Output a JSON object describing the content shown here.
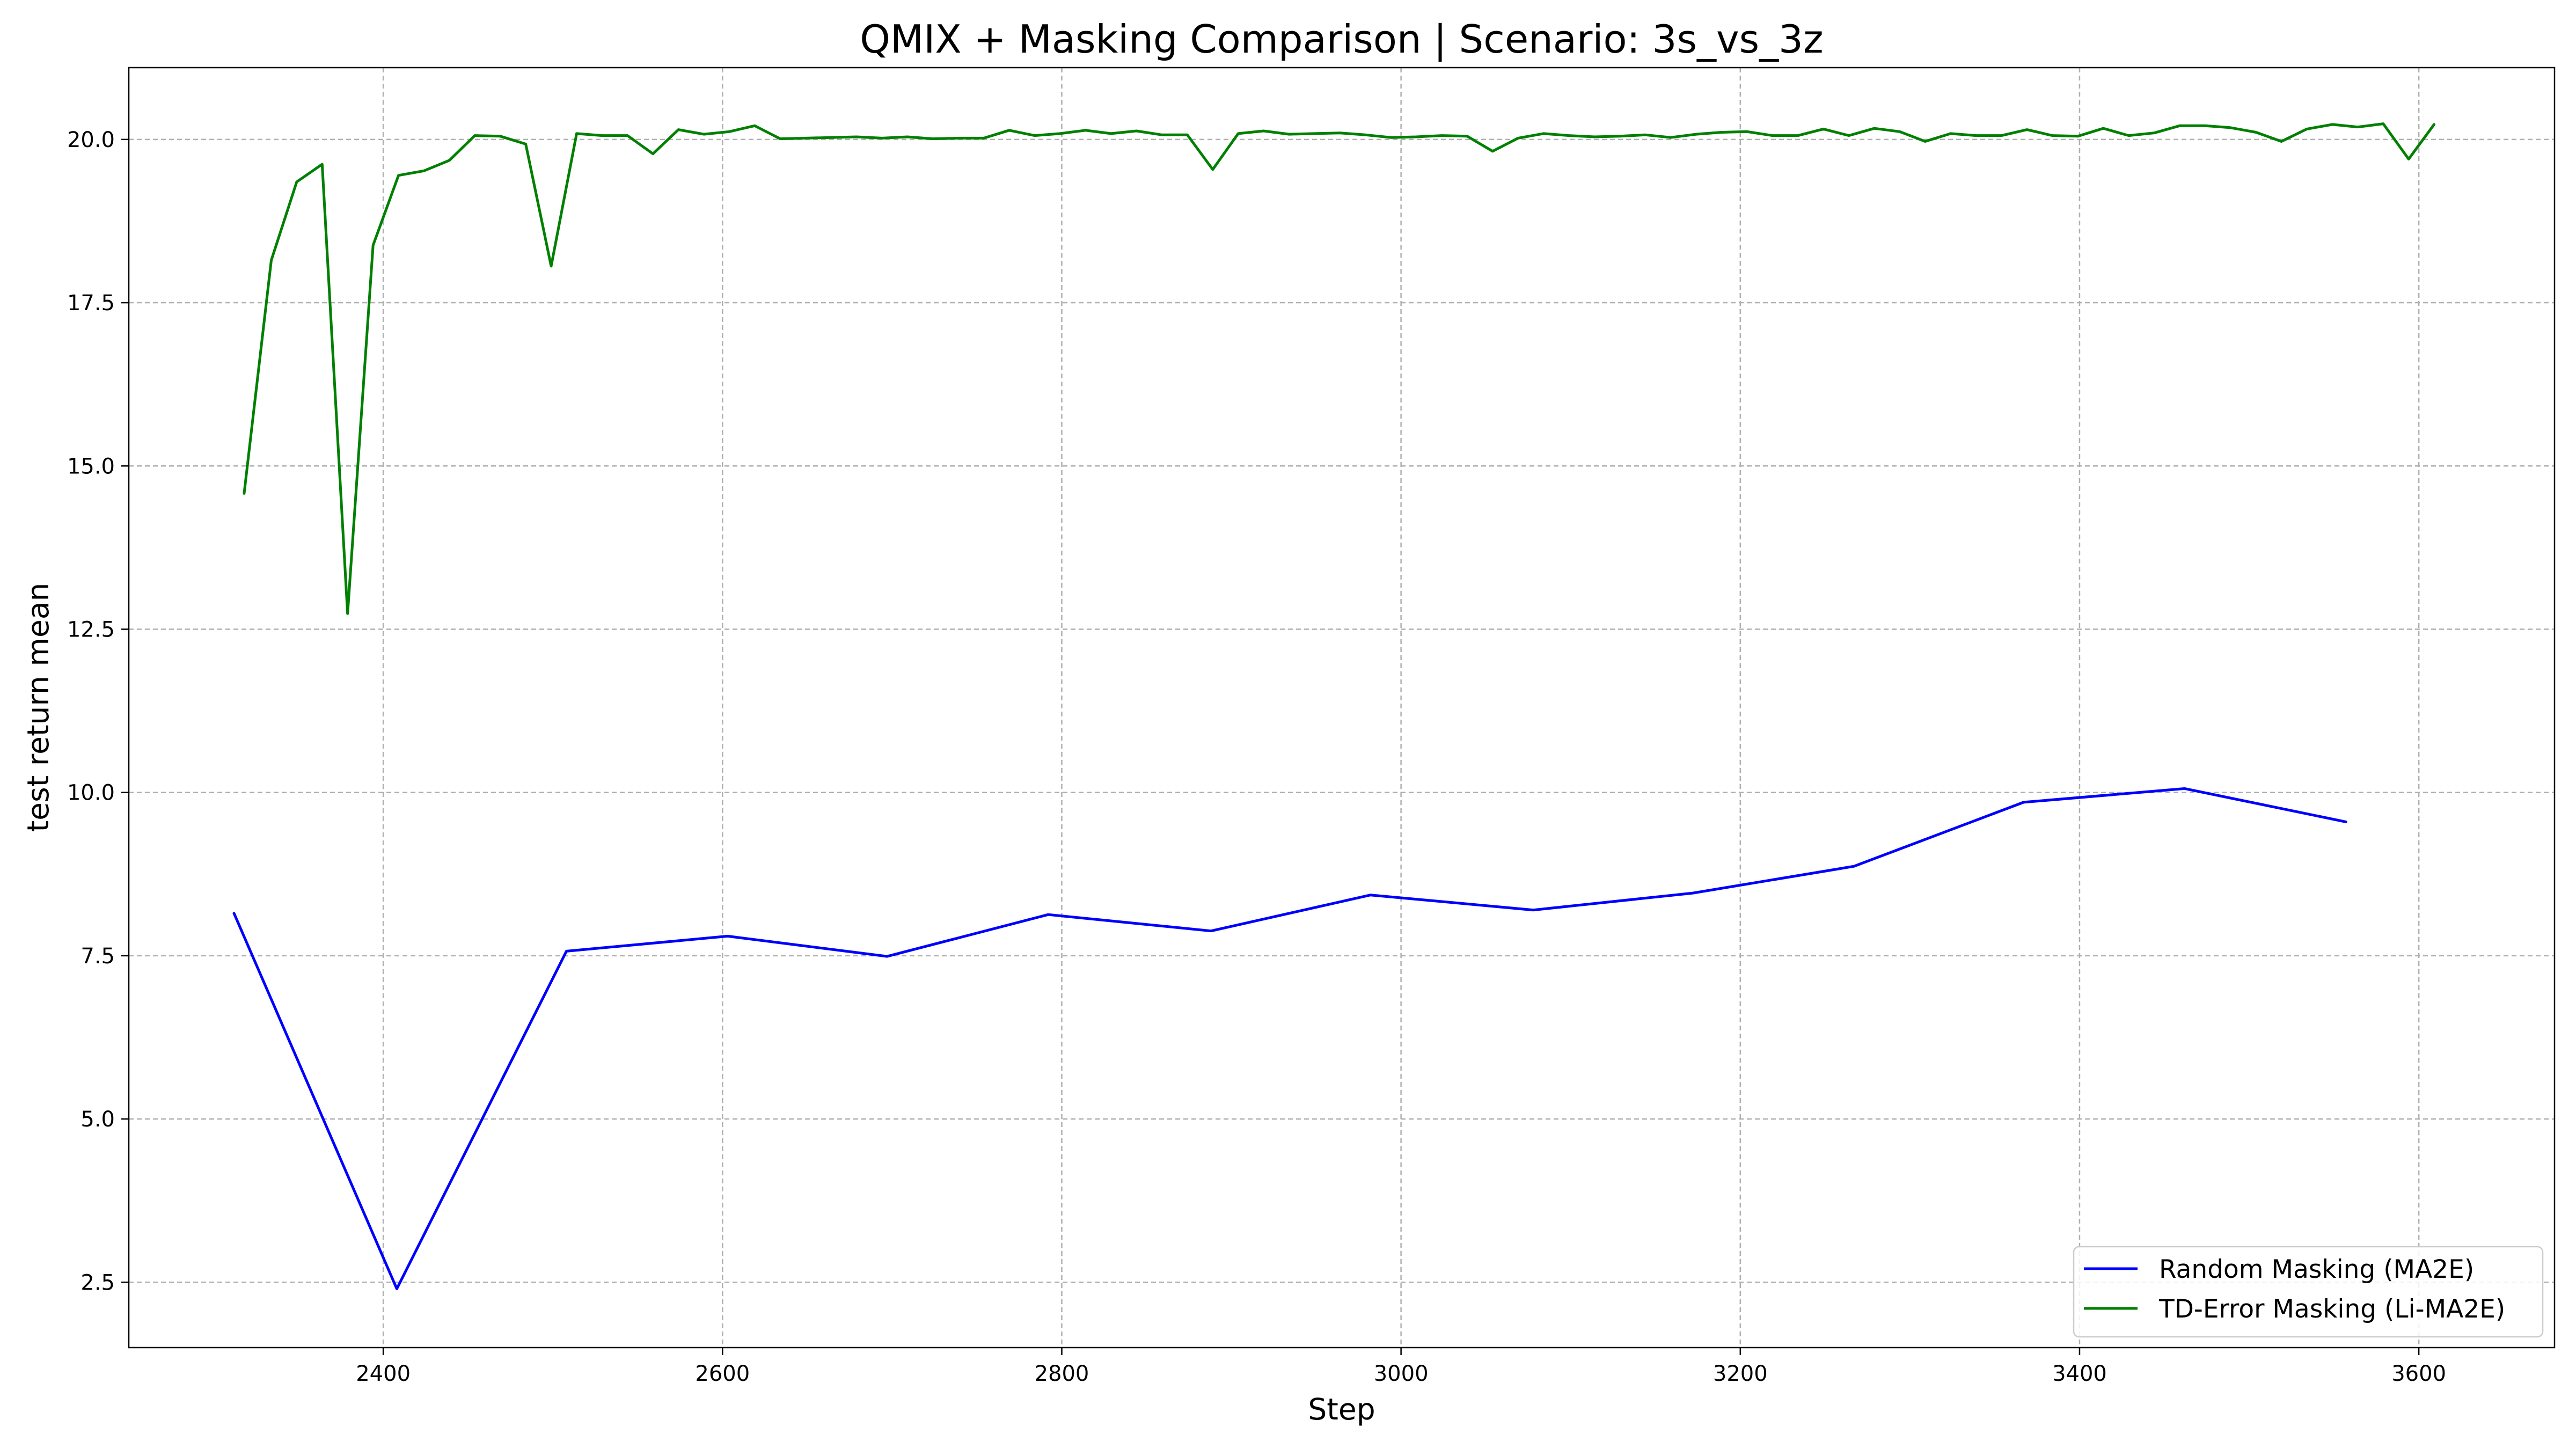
{
  "chart_data": {
    "type": "line",
    "title": "QMIX + Masking Comparison | Scenario: 3s_vs_3z",
    "xlabel": "Step",
    "ylabel": "test return mean",
    "xlim": [
      2250,
      3680
    ],
    "ylim": [
      1.5,
      21.1
    ],
    "xticks": [
      2400,
      2600,
      2800,
      3000,
      3200,
      3400,
      3600
    ],
    "yticks": [
      2.5,
      5.0,
      7.5,
      10.0,
      12.5,
      15.0,
      17.5,
      20.0
    ],
    "xtick_labels": [
      "2400",
      "2600",
      "2800",
      "3000",
      "3200",
      "3400",
      "3600"
    ],
    "ytick_labels": [
      "2.5",
      "5.0",
      "7.5",
      "10.0",
      "12.5",
      "15.0",
      "17.5",
      "20.0"
    ],
    "grid": true,
    "legend_position": "lower-right",
    "series": [
      {
        "name": "Random Masking (MA2E)",
        "color": "#0000ff",
        "x": [
          2312,
          2408,
          2508,
          2603,
          2697,
          2792,
          2888,
          2982,
          3078,
          3172,
          3267,
          3367,
          3462,
          3557
        ],
        "y": [
          8.15,
          2.4,
          7.57,
          7.8,
          7.49,
          8.13,
          7.88,
          8.43,
          8.2,
          8.46,
          8.87,
          9.85,
          10.06,
          9.55
        ]
      },
      {
        "name": "TD-Error Masking (Li-MA2E)",
        "color": "#008000",
        "x": [
          2318,
          2334,
          2349,
          2364,
          2379,
          2394,
          2409,
          2424,
          2439,
          2454,
          2469,
          2484,
          2499,
          2514,
          2529,
          2544,
          2559,
          2574,
          2589,
          2604,
          2619,
          2634,
          2649,
          2664,
          2679,
          2694,
          2709,
          2724,
          2739,
          2754,
          2769,
          2784,
          2799,
          2814,
          2829,
          2844,
          2859,
          2874,
          2889,
          2904,
          2919,
          2934,
          2949,
          2964,
          2979,
          2994,
          3009,
          3024,
          3039,
          3054,
          3069,
          3084,
          3099,
          3114,
          3129,
          3144,
          3159,
          3174,
          3189,
          3204,
          3219,
          3234,
          3249,
          3264,
          3279,
          3294,
          3309,
          3324,
          3339,
          3354,
          3369,
          3384,
          3399,
          3414,
          3429,
          3444,
          3459,
          3474,
          3489,
          3504,
          3519,
          3534,
          3549,
          3564,
          3579,
          3594,
          3609
        ],
        "y": [
          14.58,
          18.15,
          19.35,
          19.62,
          12.74,
          18.38,
          19.45,
          19.52,
          19.68,
          20.06,
          20.05,
          19.93,
          18.06,
          20.09,
          20.06,
          20.06,
          19.78,
          20.15,
          20.08,
          20.12,
          20.21,
          20.01,
          20.02,
          20.03,
          20.04,
          20.02,
          20.04,
          20.01,
          20.02,
          20.02,
          20.14,
          20.06,
          20.09,
          20.14,
          20.09,
          20.13,
          20.07,
          20.07,
          19.54,
          20.09,
          20.13,
          20.08,
          20.09,
          20.1,
          20.07,
          20.03,
          20.04,
          20.06,
          20.05,
          19.82,
          20.02,
          20.09,
          20.06,
          20.04,
          20.05,
          20.07,
          20.03,
          20.08,
          20.11,
          20.12,
          20.06,
          20.06,
          20.16,
          20.06,
          20.17,
          20.12,
          19.97,
          20.09,
          20.06,
          20.06,
          20.15,
          20.06,
          20.05,
          20.17,
          20.06,
          20.1,
          20.21,
          20.21,
          20.18,
          20.11,
          19.97,
          20.16,
          20.23,
          20.19,
          20.24,
          19.7,
          20.23
        ]
      }
    ]
  }
}
